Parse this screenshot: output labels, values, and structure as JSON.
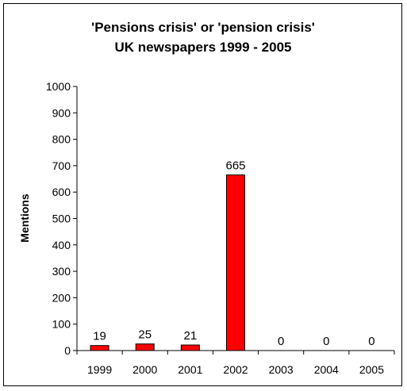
{
  "chart_data": {
    "type": "bar",
    "title_line1": "'Pensions crisis' or 'pension crisis'",
    "title_line2": "UK newspapers 1999 - 2005",
    "xlabel": "",
    "ylabel": "Mentions",
    "categories": [
      "1999",
      "2000",
      "2001",
      "2002",
      "2003",
      "2004",
      "2005"
    ],
    "values": [
      19,
      25,
      21,
      665,
      0,
      0,
      0
    ],
    "data_labels": [
      "19",
      "25",
      "21",
      "665",
      "0",
      "0",
      "0"
    ],
    "ylim": [
      0,
      1000
    ],
    "yticks": [
      0,
      100,
      200,
      300,
      400,
      500,
      600,
      700,
      800,
      900,
      1000
    ],
    "grid": false,
    "legend": "none",
    "bar_color": "#ff0000",
    "bar_outline_color": "#000000"
  }
}
